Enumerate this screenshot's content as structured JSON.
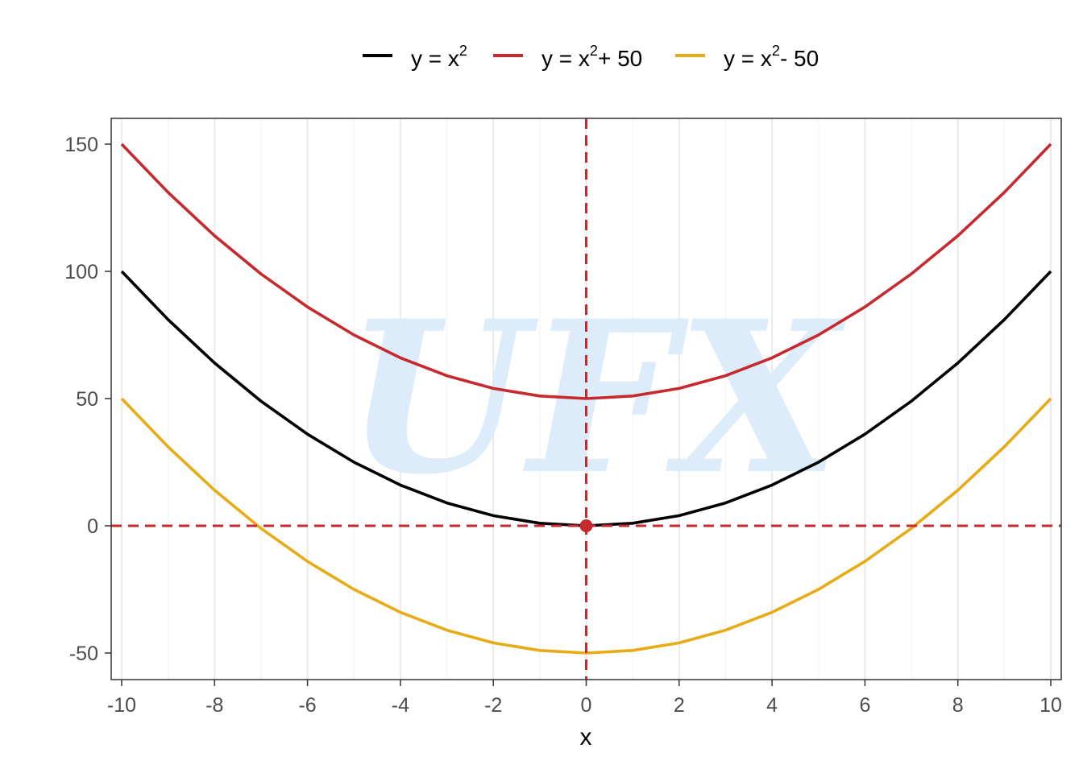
{
  "chart_data": {
    "type": "line",
    "xlabel": "x",
    "ylabel": "",
    "xlim": [
      -10,
      10
    ],
    "ylim": [
      -60,
      160
    ],
    "x_ticks": [
      -10,
      -8,
      -6,
      -4,
      -2,
      0,
      2,
      4,
      6,
      8,
      10
    ],
    "y_ticks": [
      -50,
      0,
      50,
      100,
      150
    ],
    "x_tick_labels": [
      "-10",
      "-8",
      "-6",
      "-4",
      "-2",
      "0",
      "2",
      "4",
      "6",
      "8",
      "10"
    ],
    "y_tick_labels": [
      "-50",
      "0",
      "50",
      "100",
      "150"
    ],
    "grid": "vertical",
    "legend_position": "top",
    "x": [
      -10,
      -9,
      -8,
      -7,
      -6,
      -5,
      -4,
      -3,
      -2,
      -1,
      0,
      1,
      2,
      3,
      4,
      5,
      6,
      7,
      8,
      9,
      10
    ],
    "series": [
      {
        "legend_parts": [
          "y = x",
          "2",
          ""
        ],
        "color": "#000000",
        "values": [
          100,
          81,
          64,
          49,
          36,
          25,
          16,
          9,
          4,
          1,
          0,
          1,
          4,
          9,
          16,
          25,
          36,
          49,
          64,
          81,
          100
        ]
      },
      {
        "legend_parts": [
          "y = x",
          "2",
          "+ 50"
        ],
        "color": "#c62a2f",
        "values": [
          150,
          131,
          114,
          99,
          86,
          75,
          66,
          59,
          54,
          51,
          50,
          51,
          54,
          59,
          66,
          75,
          86,
          99,
          114,
          131,
          150
        ]
      },
      {
        "legend_parts": [
          "y = x",
          "2",
          "- 50"
        ],
        "color": "#e7ab16",
        "values": [
          50,
          31,
          14,
          -1,
          -14,
          -25,
          -34,
          -41,
          -46,
          -49,
          -50,
          -49,
          -46,
          -41,
          -34,
          -25,
          -14,
          -1,
          14,
          31,
          50
        ]
      }
    ],
    "reference_lines": {
      "hline_y": 0,
      "vline_x": 0,
      "color": "#c62a2f",
      "style": "dashed"
    },
    "highlight_point": {
      "x": 0,
      "y": 0,
      "color": "#c62a2f"
    },
    "watermark": "UFX"
  }
}
